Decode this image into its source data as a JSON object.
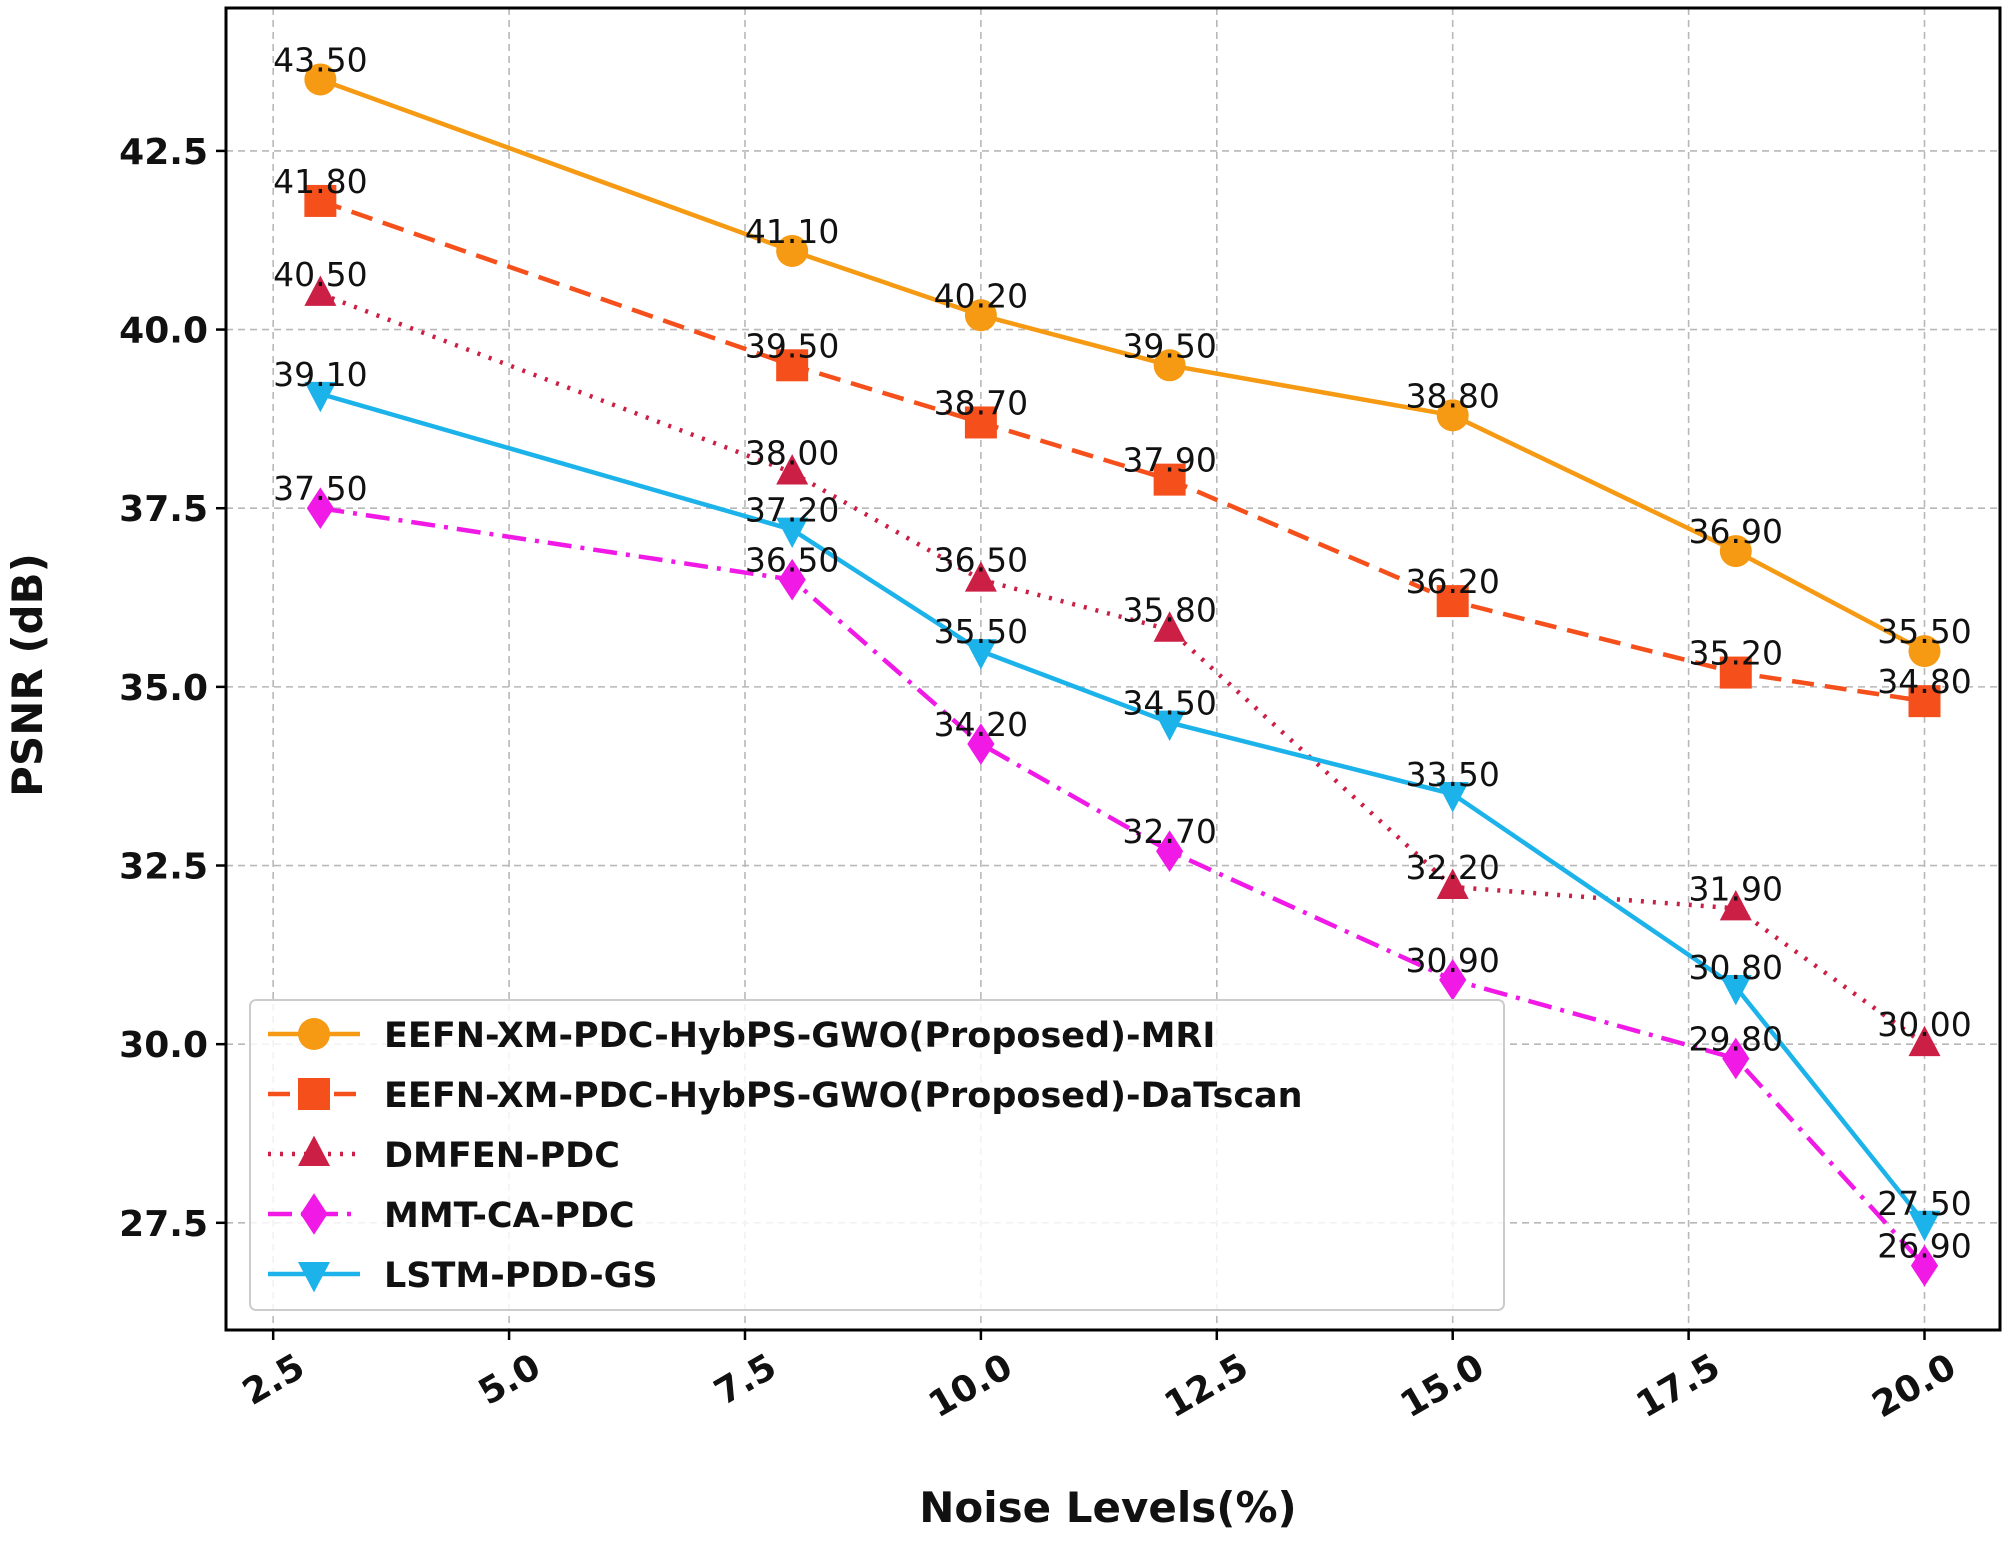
{
  "chart_data": {
    "type": "line",
    "title": "",
    "xlabel": "Noise Levels(%)",
    "ylabel": "PSNR (dB)",
    "xlim": [
      2.0,
      20.8
    ],
    "ylim": [
      26.0,
      44.5
    ],
    "xticks": [
      2.5,
      5.0,
      7.5,
      10.0,
      12.5,
      15.0,
      17.5,
      20.0
    ],
    "xtick_labels": [
      "2.5",
      "5.0",
      "7.5",
      "10.0",
      "12.5",
      "15.0",
      "17.5",
      "20.0"
    ],
    "yticks": [
      27.5,
      30.0,
      32.5,
      35.0,
      37.5,
      40.0,
      42.5
    ],
    "ytick_labels": [
      "27.5",
      "30.0",
      "32.5",
      "35.0",
      "37.5",
      "40.0",
      "42.5"
    ],
    "grid": true,
    "legend_position": "lower-left",
    "x": [
      3,
      8,
      10,
      12,
      15,
      18,
      20
    ],
    "series": [
      {
        "name": "EEFN-XM-PDC-HybPS-GWO(Proposed)-MRI",
        "values": [
          43.5,
          41.1,
          40.2,
          39.5,
          38.8,
          36.9,
          35.5
        ],
        "labels": [
          "43.50",
          "41.10",
          "40.20",
          "39.50",
          "38.80",
          "36.90",
          "35.50"
        ],
        "color": "#f59a12",
        "dash": "solid",
        "marker": "circle"
      },
      {
        "name": "EEFN-XM-PDC-HybPS-GWO(Proposed)-DaTscan",
        "values": [
          41.8,
          39.5,
          38.7,
          37.9,
          36.2,
          35.2,
          34.8
        ],
        "labels": [
          "41.80",
          "39.50",
          "38.70",
          "37.90",
          "36.20",
          "35.20",
          "34.80"
        ],
        "color": "#f5501c",
        "dash": "dashed",
        "marker": "square"
      },
      {
        "name": "DMFEN-PDC",
        "values": [
          40.5,
          38.0,
          36.5,
          35.8,
          32.2,
          31.9,
          30.0
        ],
        "labels": [
          "40.50",
          "38.00",
          "36.50",
          "35.80",
          "32.20",
          "31.90",
          "30.00"
        ],
        "color": "#cc1f45",
        "dash": "dotted",
        "marker": "triangle-up"
      },
      {
        "name": "MMT-CA-PDC",
        "values": [
          37.5,
          36.5,
          34.2,
          32.7,
          30.9,
          29.8,
          26.9
        ],
        "labels": [
          "37.50",
          "36.50",
          "34.20",
          "32.70",
          "30.90",
          "29.80",
          "26.90"
        ],
        "color": "#f019e6",
        "dash": "dashdot",
        "marker": "diamond"
      },
      {
        "name": "LSTM-PDD-GS",
        "values": [
          39.1,
          37.2,
          35.5,
          34.5,
          33.5,
          30.8,
          27.5
        ],
        "labels": [
          "39.10",
          "37.20",
          "35.50",
          "34.50",
          "33.50",
          "30.80",
          "27.50"
        ],
        "color": "#1cb2ea",
        "dash": "solid",
        "marker": "triangle-down"
      }
    ]
  }
}
